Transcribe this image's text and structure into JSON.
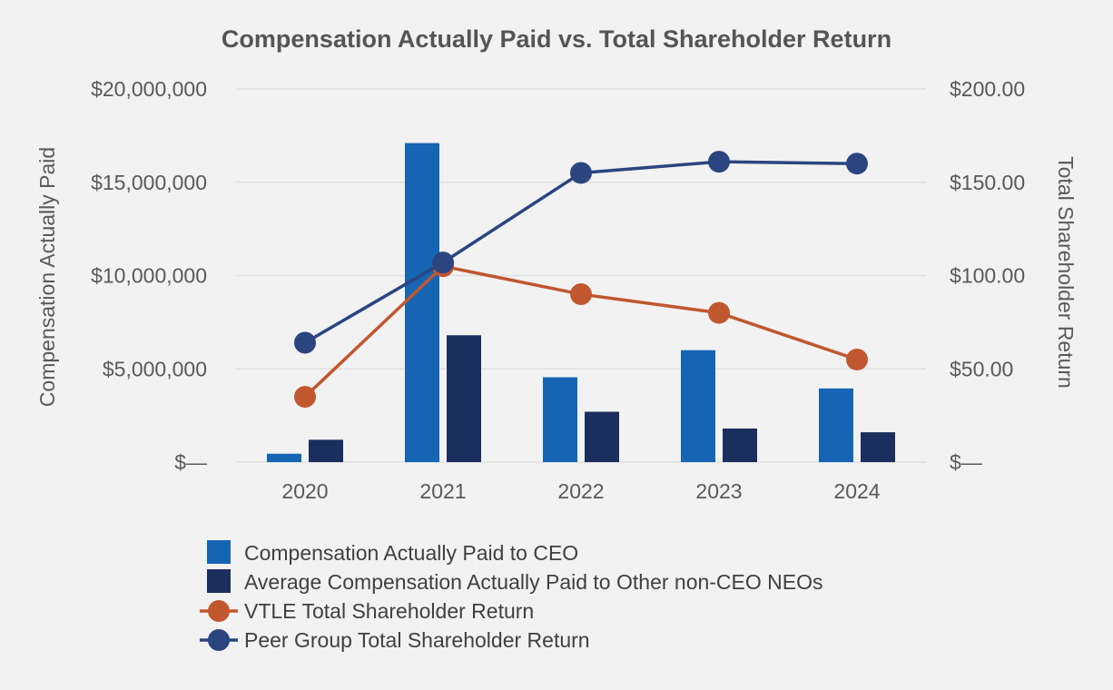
{
  "chart_data": {
    "type": "bar+line",
    "title": "Compensation Actually Paid vs. Total Shareholder Return",
    "categories": [
      "2020",
      "2021",
      "2022",
      "2023",
      "2024"
    ],
    "ylabel_left": "Compensation Actually Paid",
    "ylabel_right": "Total Shareholder Return",
    "ylim_left": [
      0,
      20000000
    ],
    "ylim_right": [
      0,
      200
    ],
    "left_ticks": [
      "$—",
      "$5,000,000",
      "$10,000,000",
      "$15,000,000",
      "$20,000,000"
    ],
    "right_ticks": [
      "$—",
      "$50.00",
      "$100.00",
      "$150.00",
      "$200.00"
    ],
    "grid": true,
    "legend_position": "bottom",
    "bar_series": [
      {
        "name": "Compensation Actually Paid to CEO",
        "color": "#1565b4",
        "axis": "left",
        "values": [
          450000,
          17100000,
          4550000,
          6000000,
          3950000
        ]
      },
      {
        "name": "Average Compensation Actually Paid to Other non-CEO NEOs",
        "color": "#1b2f5e",
        "axis": "left",
        "values": [
          1200000,
          6800000,
          2700000,
          1800000,
          1600000
        ]
      }
    ],
    "line_series": [
      {
        "name": "VTLE Total Shareholder Return",
        "color": "#c0572f",
        "axis": "right",
        "values": [
          35,
          105,
          90,
          80,
          55
        ]
      },
      {
        "name": "Peer Group Total Shareholder Return",
        "color": "#2a4580",
        "axis": "right",
        "values": [
          64,
          107,
          155,
          161,
          160
        ]
      }
    ]
  }
}
